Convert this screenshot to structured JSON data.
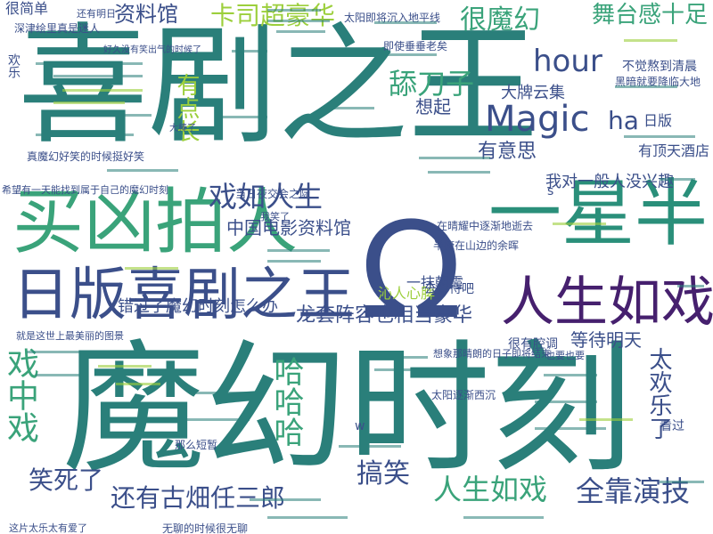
{
  "colors": {
    "background": "#ffffff",
    "teal": "#2a7f7a",
    "green": "#3aa37a",
    "navy": "#3b4f8a",
    "purple": "#46206e",
    "lime": "#9ccf3c",
    "yellow_green": "#c9dc3a"
  },
  "words": [
    {
      "text": "喜剧之王",
      "color": "#2a7f7a"
    },
    {
      "text": "魔幻时刻",
      "color": "#2a7f7a"
    },
    {
      "text": "买凶拍人",
      "color": "#3aa37a"
    },
    {
      "text": "日版喜剧之王",
      "color": "#3b4f8a"
    },
    {
      "text": "一星半",
      "color": "#2a8f7a"
    },
    {
      "text": "人生如戏",
      "color": "#46206e"
    },
    {
      "text": "Ω",
      "color": "#3b4f8a"
    },
    {
      "text": "戏如人生",
      "color": "#3b4f8a"
    },
    {
      "text": "hour",
      "color": "#3b4f8a"
    },
    {
      "text": "Magic",
      "color": "#3b4f8a"
    },
    {
      "text": "ha",
      "color": "#3b4f8a"
    },
    {
      "text": "日版",
      "color": "#3b4f8a"
    },
    {
      "text": "有顶天酒店",
      "color": "#3b4f8a"
    },
    {
      "text": "舔刀子",
      "color": "#3aa37a"
    },
    {
      "text": "大牌云集",
      "color": "#3b4f8a"
    },
    {
      "text": "想起",
      "color": "#3b4f8a"
    },
    {
      "text": "有意思",
      "color": "#3b4f8a"
    },
    {
      "text": "很魔幻",
      "color": "#3aa37a"
    },
    {
      "text": "舞台感十足",
      "color": "#3aa37a"
    },
    {
      "text": "卡司超豪华",
      "color": "#9ccf3c"
    },
    {
      "text": "资料馆",
      "color": "#3b4f8a"
    },
    {
      "text": "很简单",
      "color": "#3b4f8a"
    },
    {
      "text": "欢乐",
      "color": "#3b4f8a"
    },
    {
      "text": "有点长",
      "color": "#9ccf3c"
    },
    {
      "text": "中国电影资料馆",
      "color": "#3b4f8a"
    },
    {
      "text": "我对一般人没兴趣",
      "color": "#3b4f8a"
    },
    {
      "text": "龙套阵容也相当豪华",
      "color": "#3b4f8a"
    },
    {
      "text": "错过了魔幻时刻怎么办",
      "color": "#3b4f8a"
    },
    {
      "text": "哈哈哈",
      "color": "#3aa37a"
    },
    {
      "text": "戏中戏",
      "color": "#3aa37a"
    },
    {
      "text": "太欢乐了",
      "color": "#3b4f8a"
    },
    {
      "text": "等待明天",
      "color": "#3b4f8a"
    },
    {
      "text": "笑死了",
      "color": "#3b4f8a"
    },
    {
      "text": "还有古畑任三郎",
      "color": "#3b4f8a"
    },
    {
      "text": "搞笑",
      "color": "#3b4f8a"
    },
    {
      "text": "人生如戏",
      "color": "#3aa37a"
    },
    {
      "text": "全靠演技",
      "color": "#3b4f8a"
    },
    {
      "text": "一抹朝霞",
      "color": "#3b4f8a"
    },
    {
      "text": "沁人心脾",
      "color": "#9ccf3c"
    },
    {
      "text": "去等待吧",
      "color": "#3b4f8a"
    },
    {
      "text": "不觉熬到清晨",
      "color": "#3b4f8a"
    },
    {
      "text": "黑暗就要降临大地",
      "color": "#3b4f8a"
    },
    {
      "text": "太阳即将沉入地平线",
      "color": "#3b4f8a"
    },
    {
      "text": "即使垂垂老矣",
      "color": "#3b4f8a"
    },
    {
      "text": "真魔幻好笑的时候挺好笑",
      "color": "#3b4f8a"
    },
    {
      "text": "当日夜交会之际",
      "color": "#3b4f8a"
    },
    {
      "text": "在晴耀中逐渐地逝去",
      "color": "#3b4f8a"
    },
    {
      "text": "半掩在山边的余晖",
      "color": "#3b4f8a"
    },
    {
      "text": "很有腔调",
      "color": "#3b4f8a"
    },
    {
      "text": "看过",
      "color": "#3b4f8a"
    },
    {
      "text": "太阳逐渐西沉",
      "color": "#3b4f8a"
    },
    {
      "text": "那么短暂",
      "color": "#3b4f8a"
    },
    {
      "text": "无聊的时候很无聊",
      "color": "#3b4f8a"
    },
    {
      "text": "这片太乐太有爱了",
      "color": "#3b4f8a"
    },
    {
      "text": "希望有一天能找到属于自己的魔幻时刻",
      "color": "#3b4f8a"
    },
    {
      "text": "还有明日",
      "color": "#3b4f8a"
    },
    {
      "text": "深津绘里真是迷人",
      "color": "#3b4f8a"
    },
    {
      "text": "好久没有笑出气的时候了",
      "color": "#3b4f8a"
    },
    {
      "text": "就是这世上最美丽的图景",
      "color": "#3b4f8a"
    },
    {
      "text": "我笑了",
      "color": "#3b4f8a"
    },
    {
      "text": "想象那晴朗的日子即将结束",
      "color": "#3b4f8a"
    },
    {
      "text": "也要也要",
      "color": "#3b4f8a"
    },
    {
      "text": "s",
      "color": "#3b4f8a"
    },
    {
      "text": "w",
      "color": "#3b4f8a"
    },
    {
      "text": "大棒了",
      "color": "#3b4f8a"
    }
  ]
}
